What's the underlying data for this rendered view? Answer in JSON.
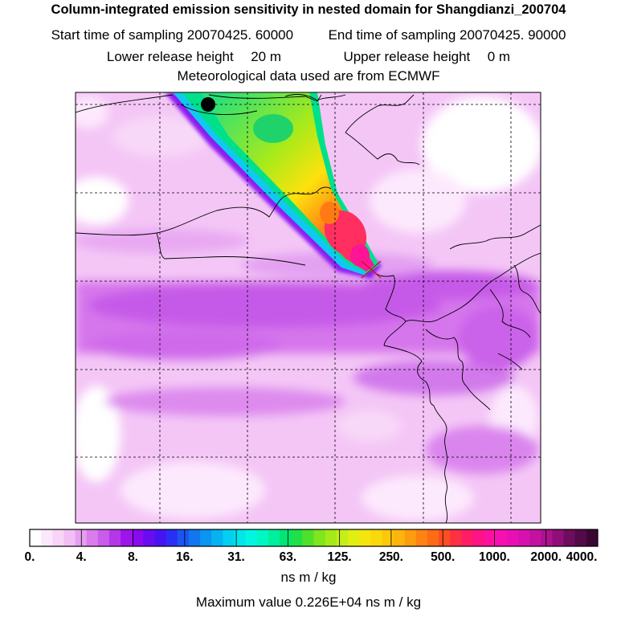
{
  "header": {
    "title": "Column-integrated emission sensitivity in nested domain for Shangdianzi_200704",
    "start_label": "Start time of sampling",
    "start_value": "20070425. 60000",
    "end_label": "End time of sampling",
    "end_value": "20070425. 90000",
    "lower_label": "Lower release height",
    "lower_value": "20 m",
    "upper_label": "Upper release height",
    "upper_value": "0 m",
    "met_text": "Meteorological data used are from ECMWF"
  },
  "colorbar": {
    "tick_labels": [
      "0.",
      "4.",
      "8.",
      "16.",
      "31.",
      "63.",
      "125.",
      "250.",
      "500.",
      "1000.",
      "2000.",
      "4000."
    ],
    "colors": [
      "#ffffff",
      "#fce8fc",
      "#f8d4f8",
      "#f2bff4",
      "#e69ff0",
      "#d97ded",
      "#c95ceb",
      "#b537ea",
      "#9f14ea",
      "#8a0aee",
      "#6a0cf0",
      "#4813f2",
      "#2a2ff4",
      "#1a55f2",
      "#1176f0",
      "#0b94f0",
      "#06b2f0",
      "#03cff0",
      "#02e6ea",
      "#00f6df",
      "#00f6c2",
      "#00ef9c",
      "#00e573",
      "#1ee049",
      "#4fe02a",
      "#7fe51c",
      "#a4ea18",
      "#c4ee17",
      "#e0ee14",
      "#f4e50e",
      "#fad80c",
      "#fcc80c",
      "#fdb40d",
      "#fe9c0f",
      "#ff8312",
      "#ff6a16",
      "#ff4d22",
      "#ff2f44",
      "#ff1e66",
      "#ff1486",
      "#ff10a1",
      "#f70fb0",
      "#e810b5",
      "#d711ae",
      "#c412a0",
      "#ac128e",
      "#8e0f77",
      "#6e0c5e",
      "#530a48",
      "#3a0733"
    ],
    "unit": "ns m / kg",
    "max_text": "Maximum value  0.226E+04 ns m / kg"
  },
  "map": {
    "receptor": "Shangdianzi",
    "grid_lines": "dashed",
    "peak_value": 2260
  }
}
